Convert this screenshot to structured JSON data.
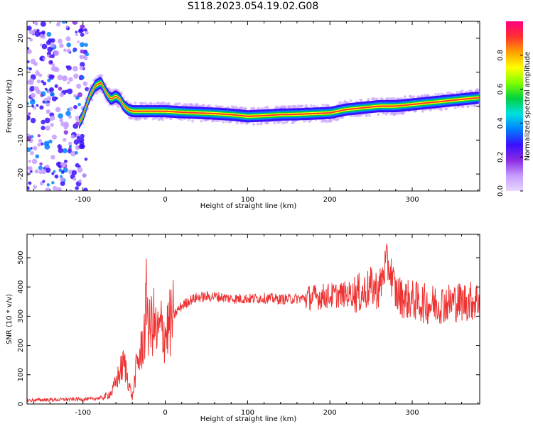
{
  "title": "S118.2023.054.19.02.G08",
  "chart_data": [
    {
      "type": "heatmap",
      "xlabel": "Height of straight line (km)",
      "ylabel": "Frequency (Hz)",
      "xlim": [
        -168,
        382
      ],
      "ylim": [
        -25,
        25
      ],
      "xticks": [
        -100,
        0,
        100,
        200,
        300
      ],
      "yticks": [
        -20,
        -10,
        0,
        10,
        20
      ],
      "colorbar": {
        "label": "Normalized spectral amplitude",
        "range": [
          0.0,
          1.0
        ],
        "ticks": [
          0.0,
          0.2,
          0.4,
          0.6,
          0.8
        ],
        "colormap": [
          "#e8d8ff",
          "#c79cff",
          "#8a2be2",
          "#3a10ff",
          "#0080ff",
          "#00e0e0",
          "#00d040",
          "#80ff00",
          "#ffff00",
          "#ffa000",
          "#ff3030",
          "#ff0080"
        ]
      },
      "ridge": {
        "x": [
          -105,
          -100,
          -92,
          -85,
          -78,
          -72,
          -66,
          -60,
          -55,
          -50,
          -45,
          -40,
          -30,
          -20,
          -10,
          0,
          20,
          40,
          60,
          80,
          100,
          120,
          140,
          160,
          180,
          200,
          220,
          240,
          260,
          280,
          300,
          320,
          340,
          360,
          382
        ],
        "y": [
          -5,
          -3,
          3,
          6,
          7,
          4,
          2,
          3,
          2,
          0,
          -1,
          -1.5,
          -1.5,
          -1.5,
          -1.5,
          -1.5,
          -1.8,
          -2,
          -2.2,
          -2.5,
          -3,
          -2.8,
          -2.5,
          -2.4,
          -2.2,
          -2,
          -1,
          -0.5,
          0,
          0,
          0.5,
          1,
          1.5,
          2,
          2.5
        ]
      }
    },
    {
      "type": "line",
      "xlabel": "Height of straight line (km)",
      "ylabel": "SNR (10 * v/v)",
      "xlim": [
        -168,
        382
      ],
      "ylim": [
        0,
        580
      ],
      "xticks": [
        -100,
        0,
        100,
        200,
        300
      ],
      "yticks": [
        0,
        100,
        200,
        300,
        400,
        500
      ],
      "series": [
        {
          "color": "#ee3333",
          "x": [
            -168,
            -150,
            -130,
            -110,
            -90,
            -75,
            -65,
            -55,
            -50,
            -45,
            -40,
            -35,
            -30,
            -25,
            -22,
            -20,
            -15,
            -10,
            -5,
            0,
            5,
            10,
            15,
            20,
            30,
            40,
            60,
            80,
            100,
            120,
            140,
            160,
            180,
            200,
            220,
            240,
            250,
            260,
            268,
            272,
            280,
            290,
            300,
            320,
            340,
            360,
            382
          ],
          "y": [
            12,
            14,
            15,
            16,
            17,
            22,
            40,
            110,
            140,
            80,
            20,
            130,
            170,
            250,
            390,
            240,
            290,
            230,
            260,
            240,
            270,
            300,
            320,
            335,
            355,
            365,
            368,
            360,
            360,
            362,
            358,
            360,
            365,
            370,
            375,
            380,
            400,
            390,
            480,
            470,
            380,
            360,
            355,
            340,
            345,
            350,
            355
          ]
        }
      ]
    }
  ]
}
